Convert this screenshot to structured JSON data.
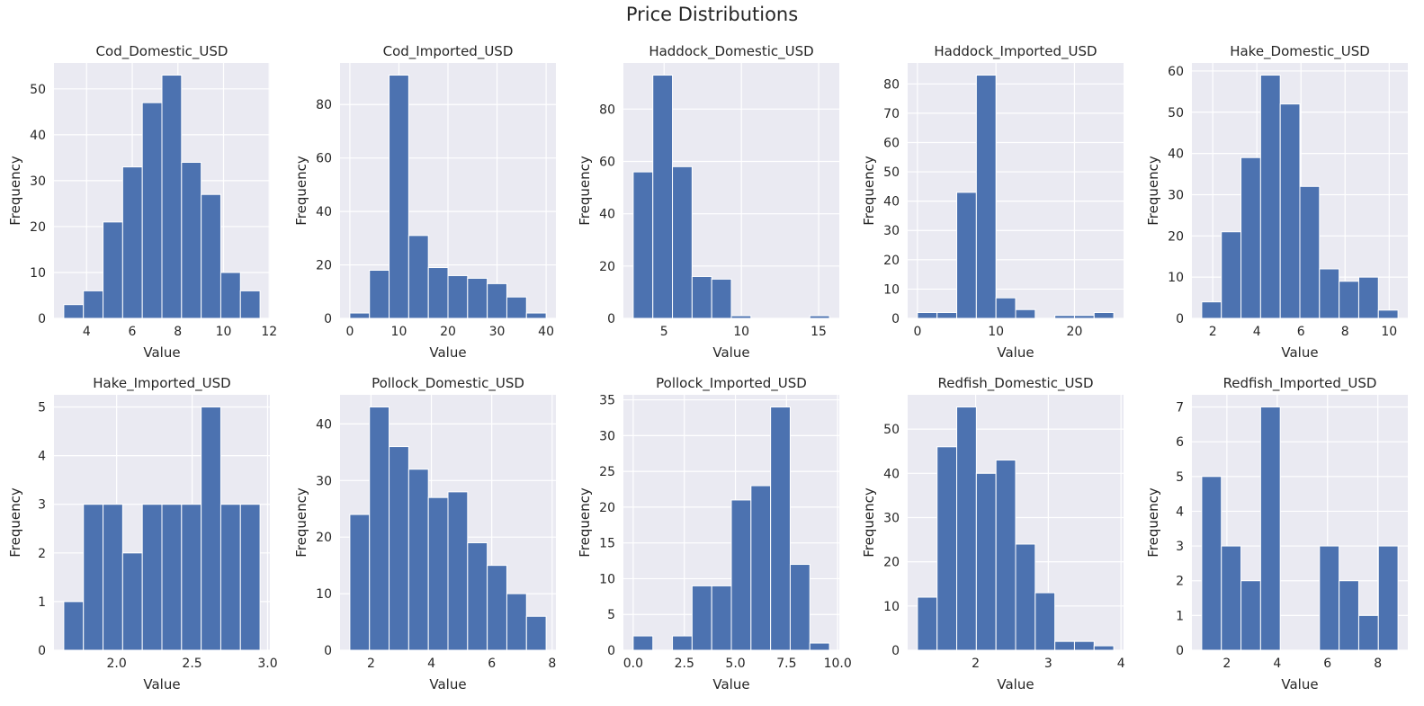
{
  "figure": {
    "title": "Price Distributions",
    "colors": {
      "bar": "#4c72b0",
      "panel_background": "#eaeaf2",
      "grid": "#ffffff",
      "text": "#262626"
    }
  },
  "chart_data": [
    {
      "type": "bar",
      "title": "Cod_Domestic_USD",
      "xlabel": "Value",
      "ylabel": "Frequency",
      "bin_edges": [
        3.0,
        3.86,
        4.72,
        5.58,
        6.44,
        7.3,
        8.16,
        9.02,
        9.88,
        10.74,
        11.6
      ],
      "values": [
        3,
        6,
        21,
        33,
        47,
        53,
        34,
        27,
        10,
        6
      ],
      "xlim": [
        2.57,
        12.03
      ],
      "ylim": [
        0,
        55.65
      ],
      "xticks": [
        4,
        6,
        8,
        10,
        12
      ],
      "yticks": [
        0,
        10,
        20,
        30,
        40,
        50
      ],
      "grid": true,
      "legend": "none"
    },
    {
      "type": "bar",
      "title": "Cod_Imported_USD",
      "xlabel": "Value",
      "ylabel": "Frequency",
      "bin_edges": [
        0.0,
        4.0,
        8.0,
        12.0,
        16.0,
        20.0,
        24.0,
        28.0,
        32.0,
        36.0,
        40.0
      ],
      "values": [
        2,
        18,
        91,
        31,
        19,
        16,
        15,
        13,
        8,
        2
      ],
      "xlim": [
        -2.0,
        42.0
      ],
      "ylim": [
        0,
        95.55
      ],
      "xticks": [
        0,
        10,
        20,
        30,
        40
      ],
      "yticks": [
        0,
        20,
        40,
        60,
        80
      ],
      "grid": true,
      "legend": "none"
    },
    {
      "type": "bar",
      "title": "Haddock_Domestic_USD",
      "xlabel": "Value",
      "ylabel": "Frequency",
      "bin_edges": [
        3.0,
        4.27,
        5.54,
        6.81,
        8.08,
        9.35,
        10.62,
        11.89,
        13.16,
        14.43,
        15.7
      ],
      "values": [
        56,
        93,
        58,
        16,
        15,
        1,
        0,
        0,
        0,
        1
      ],
      "xlim": [
        2.365,
        16.335
      ],
      "ylim": [
        0,
        97.65
      ],
      "xticks": [
        5,
        10,
        15
      ],
      "yticks": [
        0,
        20,
        40,
        60,
        80
      ],
      "grid": true,
      "legend": "none"
    },
    {
      "type": "bar",
      "title": "Haddock_Imported_USD",
      "xlabel": "Value",
      "ylabel": "Frequency",
      "bin_edges": [
        0.0,
        2.5,
        5.0,
        7.5,
        10.0,
        12.5,
        15.0,
        17.5,
        20.0,
        22.5,
        25.0
      ],
      "values": [
        2,
        2,
        43,
        83,
        7,
        3,
        0,
        1,
        1,
        2
      ],
      "xlim": [
        -1.25,
        26.25
      ],
      "ylim": [
        0,
        87.15
      ],
      "xticks": [
        0,
        10,
        20
      ],
      "yticks": [
        0,
        10,
        20,
        30,
        40,
        50,
        60,
        70,
        80
      ],
      "grid": true,
      "legend": "none"
    },
    {
      "type": "bar",
      "title": "Hake_Domestic_USD",
      "xlabel": "Value",
      "ylabel": "Frequency",
      "bin_edges": [
        1.5,
        2.39,
        3.28,
        4.17,
        5.06,
        5.95,
        6.84,
        7.73,
        8.62,
        9.51,
        10.4
      ],
      "values": [
        4,
        21,
        39,
        59,
        52,
        32,
        12,
        9,
        10,
        2
      ],
      "xlim": [
        1.055,
        10.845
      ],
      "ylim": [
        0,
        61.95
      ],
      "xticks": [
        2,
        4,
        6,
        8,
        10
      ],
      "yticks": [
        0,
        10,
        20,
        30,
        40,
        50,
        60
      ],
      "grid": true,
      "legend": "none"
    },
    {
      "type": "bar",
      "title": "Hake_Imported_USD",
      "xlabel": "Value",
      "ylabel": "Frequency",
      "bin_edges": [
        1.65,
        1.78,
        1.91,
        2.04,
        2.17,
        2.3,
        2.43,
        2.56,
        2.69,
        2.82,
        2.95
      ],
      "values": [
        1,
        3,
        3,
        2,
        3,
        3,
        3,
        5,
        3,
        3
      ],
      "xlim": [
        1.585,
        3.015
      ],
      "ylim": [
        0,
        5.25
      ],
      "xticks": [
        2.0,
        2.5,
        3.0
      ],
      "xtick_labels": [
        "2.0",
        "2.5",
        "3.0"
      ],
      "yticks": [
        0,
        1,
        2,
        3,
        4,
        5
      ],
      "grid": true,
      "legend": "none"
    },
    {
      "type": "bar",
      "title": "Pollock_Domestic_USD",
      "xlabel": "Value",
      "ylabel": "Frequency",
      "bin_edges": [
        1.3,
        1.95,
        2.6,
        3.25,
        3.9,
        4.55,
        5.2,
        5.85,
        6.5,
        7.15,
        7.8
      ],
      "values": [
        24,
        43,
        36,
        32,
        27,
        28,
        19,
        15,
        10,
        6
      ],
      "xlim": [
        0.975,
        8.125
      ],
      "ylim": [
        0,
        45.15
      ],
      "xticks": [
        2,
        4,
        6,
        8
      ],
      "yticks": [
        0,
        10,
        20,
        30,
        40
      ],
      "grid": true,
      "legend": "none"
    },
    {
      "type": "bar",
      "title": "Pollock_Imported_USD",
      "xlabel": "Value",
      "ylabel": "Frequency",
      "bin_edges": [
        0.0,
        0.96,
        1.92,
        2.88,
        3.84,
        4.8,
        5.76,
        6.72,
        7.68,
        8.64,
        9.6
      ],
      "values": [
        2,
        0,
        2,
        9,
        9,
        21,
        23,
        34,
        12,
        1
      ],
      "xlim": [
        -0.48,
        10.08
      ],
      "ylim": [
        0,
        35.7
      ],
      "xticks": [
        0.0,
        2.5,
        5.0,
        7.5,
        10.0
      ],
      "xtick_labels": [
        "0.0",
        "2.5",
        "5.0",
        "7.5",
        "10.0"
      ],
      "yticks": [
        0,
        5,
        10,
        15,
        20,
        25,
        30,
        35
      ],
      "grid": true,
      "legend": "none"
    },
    {
      "type": "bar",
      "title": "Redfish_Domestic_USD",
      "xlabel": "Value",
      "ylabel": "Frequency",
      "bin_edges": [
        1.2,
        1.47,
        1.74,
        2.01,
        2.28,
        2.55,
        2.82,
        3.09,
        3.36,
        3.63,
        3.9
      ],
      "values": [
        12,
        46,
        55,
        40,
        43,
        24,
        13,
        2,
        2,
        1
      ],
      "xlim": [
        1.065,
        4.035
      ],
      "ylim": [
        0,
        57.75
      ],
      "xticks": [
        2,
        3,
        4
      ],
      "yticks": [
        0,
        10,
        20,
        30,
        40,
        50
      ],
      "grid": true,
      "legend": "none"
    },
    {
      "type": "bar",
      "title": "Redfish_Imported_USD",
      "xlabel": "Value",
      "ylabel": "Frequency",
      "bin_edges": [
        1.0,
        1.78,
        2.56,
        3.34,
        4.12,
        4.9,
        5.68,
        6.46,
        7.24,
        8.02,
        8.8
      ],
      "values": [
        5,
        3,
        2,
        7,
        0,
        0,
        3,
        2,
        1,
        3
      ],
      "xlim": [
        0.61,
        9.19
      ],
      "ylim": [
        0,
        7.35
      ],
      "xticks": [
        2,
        4,
        6,
        8
      ],
      "yticks": [
        0,
        1,
        2,
        3,
        4,
        5,
        6,
        7
      ],
      "grid": true,
      "legend": "none"
    }
  ]
}
